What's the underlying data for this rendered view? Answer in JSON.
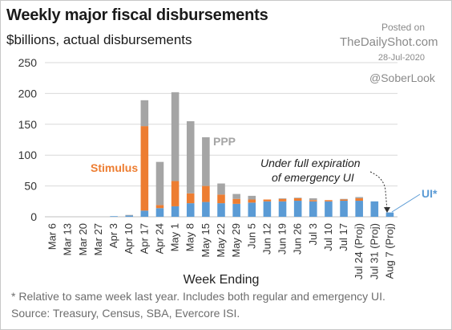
{
  "header": {
    "title": "Weekly major fiscal disbursements",
    "subtitle": "$billions, actual disbursements"
  },
  "watermark": {
    "posted": "Posted on",
    "site": "TheDailyShot.com",
    "date": "28-Jul-2020",
    "handle": "@SoberLook"
  },
  "footer": {
    "footnote": "* Relative to same week last year. Includes both regular and emergency UI.",
    "source": "Source: Treasury, Census, SBA, Evercore ISI."
  },
  "colors": {
    "UI": "#5b9bd5",
    "Stimulus": "#ed7d31",
    "PPP": "#a5a5a5"
  },
  "chart_data": {
    "type": "bar",
    "stacked": true,
    "categories": [
      "Mar 6",
      "Mar 13",
      "Mar 20",
      "Mar 27",
      "Apr 3",
      "Apr 10",
      "Apr 17",
      "Apr 24",
      "May 1",
      "May 8",
      "May 15",
      "May 22",
      "May 29",
      "Jun 5",
      "Jun 12",
      "Jun 19",
      "Jun 26",
      "Jul 3",
      "Jul 10",
      "Jul 17",
      "Jul 24 (Proj)",
      "Jul 31 (Proj)",
      "Aug 7 (Proj)"
    ],
    "series": [
      {
        "name": "UI*",
        "values": [
          0,
          0,
          0,
          0,
          1,
          2,
          10,
          14,
          17,
          22,
          24,
          22,
          21,
          23,
          25,
          25,
          26,
          25,
          25,
          26,
          26,
          25,
          7
        ]
      },
      {
        "name": "Stimulus",
        "values": [
          0,
          0,
          0,
          0,
          0,
          0,
          137,
          5,
          41,
          16,
          26,
          14,
          8,
          5,
          3,
          4,
          4,
          2,
          2,
          2,
          4,
          0,
          0
        ]
      },
      {
        "name": "PPP",
        "values": [
          0,
          0,
          0,
          0,
          0,
          1,
          42,
          70,
          144,
          117,
          79,
          18,
          8,
          6,
          0,
          1,
          1,
          3,
          0,
          1,
          2,
          0,
          0
        ]
      }
    ],
    "ylim": [
      0,
      250
    ],
    "yticks": [
      0,
      50,
      100,
      150,
      200,
      250
    ],
    "xlabel": "Week Ending",
    "ylabel": "",
    "grid": true,
    "annotations": {
      "stimulus": "Stimulus",
      "ppp": "PPP",
      "ui": "UI*",
      "expiration_line1": "Under full expiration",
      "expiration_line2": "of emergency UI"
    }
  }
}
